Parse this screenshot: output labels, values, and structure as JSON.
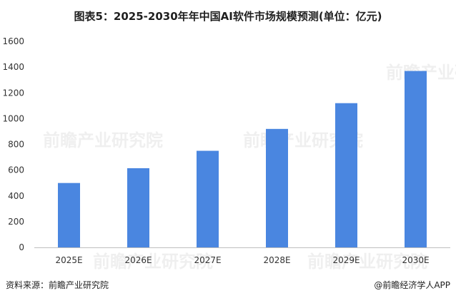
{
  "chart_data": {
    "type": "bar",
    "title": "图表5：2025-2030年年中国AI软件市场规模预测(单位：亿元)",
    "categories": [
      "2025E",
      "2026E",
      "2027E",
      "2028E",
      "2029E",
      "2030E"
    ],
    "values": [
      500,
      615,
      750,
      920,
      1120,
      1370
    ],
    "ylim": [
      0,
      1600
    ],
    "yticks": [
      0,
      200,
      400,
      600,
      800,
      1000,
      1200,
      1400,
      1600
    ],
    "grid": false,
    "bar_color": "#4a86e0"
  },
  "footer": {
    "source": "资料来源：前瞻产业研究院",
    "brand": "@前瞻经济学人APP"
  },
  "watermark_text": "前瞻产业研究院"
}
